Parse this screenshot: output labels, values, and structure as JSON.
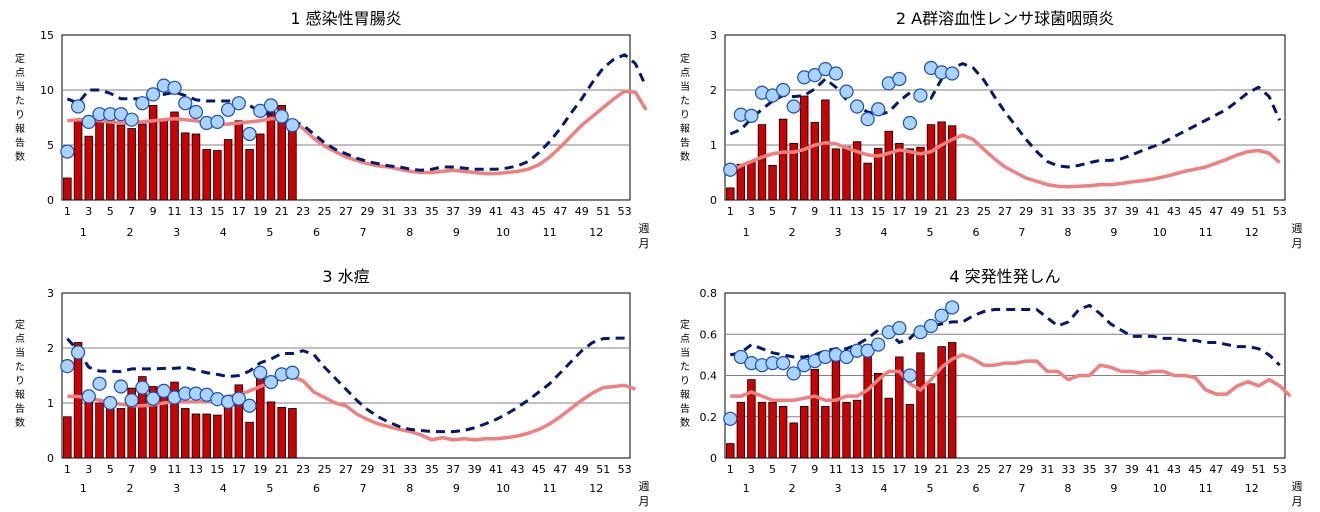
{
  "colors": {
    "bar": "#cc0000",
    "bar_stroke": "#000000",
    "avg_line": "#f08080",
    "prev_line": "#001a6e",
    "marker_fill": "#a8d4ff",
    "marker_stroke": "#1f4fb0",
    "grid": "#808080"
  },
  "x_week_ticks": [
    "1",
    "3",
    "5",
    "7",
    "9",
    "11",
    "13",
    "15",
    "17",
    "19",
    "21",
    "23",
    "25",
    "27",
    "29",
    "31",
    "33",
    "35",
    "37",
    "39",
    "41",
    "43",
    "45",
    "47",
    "49",
    "51",
    "53"
  ],
  "x_month_labels": [
    "1",
    "2",
    "3",
    "4",
    "5",
    "6",
    "7",
    "8",
    "9",
    "10",
    "11",
    "12"
  ],
  "x_unit_week": "週",
  "x_unit_month": "月",
  "y_label": "定点当たり報告数",
  "chart_data": [
    {
      "title": "1 感染性胃腸炎",
      "type": "bar",
      "ylim": [
        0,
        15
      ],
      "yticks": [
        "0",
        "5",
        "10",
        "15"
      ],
      "series": [
        {
          "values": [
            2.0,
            7.2,
            5.8,
            7.1,
            7.3,
            6.8,
            6.5,
            6.9,
            8.6,
            7.3,
            8.0,
            6.1,
            6.0,
            4.6,
            4.5,
            5.5,
            7.2,
            4.6,
            6.0,
            8.1,
            8.6,
            6.3
          ]
        },
        {
          "values": [
            4.4,
            8.5,
            7.1,
            7.8,
            7.8,
            7.8,
            7.3,
            8.8,
            9.6,
            10.4,
            10.2,
            8.8,
            8.0,
            7.0,
            7.1,
            8.2,
            8.8,
            6.0,
            8.1,
            8.6,
            7.6,
            6.8
          ]
        },
        {
          "values": [
            7.2,
            7.3,
            7.3,
            7.2,
            7.1,
            7.0,
            7.0,
            7.1,
            7.2,
            7.3,
            7.4,
            7.3,
            7.2,
            7.0,
            6.9,
            6.9,
            7.0,
            7.1,
            7.2,
            7.4,
            7.4,
            7.1,
            6.5,
            5.6,
            4.9,
            4.4,
            3.9,
            3.6,
            3.3,
            3.1,
            3.0,
            2.8,
            2.6,
            2.5,
            2.5,
            2.6,
            2.7,
            2.6,
            2.5,
            2.4,
            2.4,
            2.5,
            2.6,
            2.8,
            3.2,
            3.9,
            4.8,
            5.8,
            6.8,
            7.6,
            8.4,
            9.2,
            9.9,
            9.8,
            8.2
          ]
        },
        {
          "values": [
            9.2,
            8.8,
            10.0,
            10.0,
            9.7,
            9.2,
            9.2,
            9.2,
            9.5,
            9.6,
            9.8,
            9.5,
            9.1,
            9.0,
            9.0,
            9.0,
            9.0,
            8.6,
            8.0,
            7.8,
            7.4,
            7.2,
            6.8,
            6.0,
            5.2,
            4.6,
            4.2,
            3.8,
            3.5,
            3.3,
            3.1,
            3.0,
            2.8,
            2.7,
            2.8,
            3.0,
            3.0,
            2.9,
            2.8,
            2.8,
            2.8,
            2.9,
            3.1,
            3.5,
            4.3,
            5.3,
            6.5,
            7.9,
            9.2,
            10.7,
            12.0,
            12.8,
            13.2,
            12.4,
            10.3
          ]
        }
      ]
    },
    {
      "title": "2 A群溶血性レンサ球菌咽頭炎",
      "type": "bar",
      "ylim": [
        0,
        3
      ],
      "yticks": [
        "0",
        "1",
        "2",
        "3"
      ],
      "series": [
        {
          "values": [
            0.22,
            0.65,
            0.7,
            1.37,
            0.63,
            1.47,
            1.03,
            1.89,
            1.41,
            1.82,
            0.93,
            0.97,
            1.06,
            0.67,
            0.94,
            1.25,
            1.03,
            0.93,
            0.96,
            1.37,
            1.42,
            1.35
          ]
        },
        {
          "values": [
            0.55,
            1.55,
            1.53,
            1.95,
            1.9,
            2.0,
            1.7,
            2.23,
            2.27,
            2.38,
            2.3,
            1.97,
            1.7,
            1.47,
            1.65,
            2.12,
            2.2,
            1.4,
            1.9,
            2.4,
            2.32,
            2.3
          ]
        },
        {
          "values": [
            0.53,
            0.62,
            0.7,
            0.78,
            0.84,
            0.87,
            0.87,
            0.92,
            1.0,
            1.04,
            1.02,
            0.95,
            0.88,
            0.82,
            0.8,
            0.85,
            0.91,
            0.88,
            0.84,
            0.88,
            1.0,
            1.1,
            1.18,
            1.1,
            0.92,
            0.75,
            0.6,
            0.5,
            0.4,
            0.34,
            0.28,
            0.25,
            0.24,
            0.25,
            0.26,
            0.28,
            0.28,
            0.3,
            0.33,
            0.35,
            0.38,
            0.42,
            0.47,
            0.52,
            0.56,
            0.6,
            0.67,
            0.74,
            0.82,
            0.88,
            0.9,
            0.85,
            0.68
          ]
        },
        {
          "values": [
            1.2,
            1.28,
            1.48,
            1.65,
            1.8,
            1.9,
            1.88,
            1.9,
            2.02,
            2.2,
            2.05,
            1.82,
            1.7,
            1.6,
            1.55,
            1.6,
            1.8,
            1.95,
            1.9,
            1.85,
            2.2,
            2.4,
            2.48,
            2.4,
            2.18,
            1.88,
            1.6,
            1.35,
            1.1,
            0.88,
            0.7,
            0.62,
            0.6,
            0.63,
            0.68,
            0.72,
            0.72,
            0.75,
            0.82,
            0.9,
            0.97,
            1.05,
            1.15,
            1.25,
            1.35,
            1.45,
            1.55,
            1.65,
            1.8,
            1.95,
            2.05,
            1.88,
            1.45
          ]
        }
      ]
    },
    {
      "title": "3 水痘",
      "type": "bar",
      "ylim": [
        0,
        3
      ],
      "yticks": [
        "0",
        "1",
        "2",
        "3"
      ],
      "series": [
        {
          "values": [
            0.75,
            2.1,
            1.15,
            1.0,
            1.02,
            0.9,
            1.27,
            1.48,
            1.3,
            1.32,
            1.38,
            0.9,
            0.8,
            0.8,
            0.78,
            0.95,
            1.33,
            0.65,
            1.5,
            1.02,
            0.92,
            0.9
          ]
        },
        {
          "values": [
            1.67,
            1.92,
            1.12,
            1.35,
            1.0,
            1.3,
            1.05,
            1.28,
            1.08,
            1.22,
            1.1,
            1.17,
            1.17,
            1.15,
            1.07,
            1.02,
            1.08,
            0.95,
            1.55,
            1.38,
            1.52,
            1.55
          ]
        },
        {
          "values": [
            1.12,
            1.12,
            1.08,
            1.05,
            1.0,
            0.98,
            0.95,
            0.95,
            0.97,
            1.0,
            1.02,
            1.02,
            1.02,
            1.03,
            1.08,
            1.12,
            1.15,
            1.22,
            1.3,
            1.37,
            1.45,
            1.48,
            1.4,
            1.2,
            1.1,
            1.0,
            0.95,
            0.8,
            0.7,
            0.62,
            0.57,
            0.52,
            0.48,
            0.42,
            0.33,
            0.37,
            0.33,
            0.35,
            0.33,
            0.35,
            0.35,
            0.37,
            0.4,
            0.45,
            0.52,
            0.62,
            0.75,
            0.9,
            1.05,
            1.18,
            1.28,
            1.3,
            1.32,
            1.25
          ]
        },
        {
          "values": [
            2.17,
            1.95,
            1.65,
            1.58,
            1.58,
            1.57,
            1.62,
            1.62,
            1.62,
            1.63,
            1.63,
            1.65,
            1.6,
            1.55,
            1.52,
            1.48,
            1.5,
            1.58,
            1.73,
            1.8,
            1.9,
            1.9,
            1.95,
            1.88,
            1.65,
            1.45,
            1.25,
            1.05,
            0.88,
            0.75,
            0.65,
            0.57,
            0.52,
            0.5,
            0.48,
            0.48,
            0.48,
            0.5,
            0.55,
            0.62,
            0.7,
            0.8,
            0.92,
            1.05,
            1.2,
            1.35,
            1.55,
            1.75,
            1.95,
            2.1,
            2.17,
            2.18,
            2.18
          ]
        }
      ]
    },
    {
      "title": "4 突発性発しん",
      "type": "bar",
      "ylim": [
        0,
        0.8
      ],
      "yticks": [
        "0",
        "0.2",
        "0.4",
        "0.6",
        "0.8"
      ],
      "series": [
        {
          "values": [
            0.07,
            0.27,
            0.38,
            0.27,
            0.27,
            0.25,
            0.17,
            0.25,
            0.43,
            0.25,
            0.47,
            0.27,
            0.28,
            0.55,
            0.41,
            0.29,
            0.49,
            0.26,
            0.51,
            0.36,
            0.54,
            0.56
          ]
        },
        {
          "values": [
            0.19,
            0.49,
            0.46,
            0.45,
            0.46,
            0.46,
            0.41,
            0.45,
            0.47,
            0.49,
            0.5,
            0.49,
            0.52,
            0.52,
            0.55,
            0.61,
            0.63,
            0.4,
            0.61,
            0.64,
            0.69,
            0.73
          ]
        },
        {
          "values": [
            0.3,
            0.3,
            0.32,
            0.3,
            0.28,
            0.28,
            0.28,
            0.29,
            0.3,
            0.28,
            0.28,
            0.3,
            0.3,
            0.33,
            0.38,
            0.42,
            0.42,
            0.36,
            0.33,
            0.38,
            0.44,
            0.48,
            0.5,
            0.48,
            0.45,
            0.45,
            0.46,
            0.46,
            0.47,
            0.47,
            0.42,
            0.42,
            0.38,
            0.4,
            0.4,
            0.45,
            0.44,
            0.42,
            0.42,
            0.41,
            0.42,
            0.42,
            0.4,
            0.4,
            0.39,
            0.33,
            0.31,
            0.31,
            0.35,
            0.37,
            0.35,
            0.38,
            0.35,
            0.3
          ]
        },
        {
          "values": [
            0.5,
            0.51,
            0.55,
            0.53,
            0.51,
            0.5,
            0.49,
            0.49,
            0.5,
            0.52,
            0.53,
            0.53,
            0.55,
            0.58,
            0.62,
            0.61,
            0.56,
            0.58,
            0.63,
            0.64,
            0.65,
            0.66,
            0.66,
            0.69,
            0.71,
            0.72,
            0.72,
            0.72,
            0.72,
            0.72,
            0.68,
            0.64,
            0.66,
            0.72,
            0.74,
            0.7,
            0.65,
            0.62,
            0.59,
            0.59,
            0.59,
            0.58,
            0.58,
            0.57,
            0.57,
            0.56,
            0.56,
            0.55,
            0.54,
            0.54,
            0.53,
            0.5,
            0.45
          ]
        }
      ]
    }
  ]
}
